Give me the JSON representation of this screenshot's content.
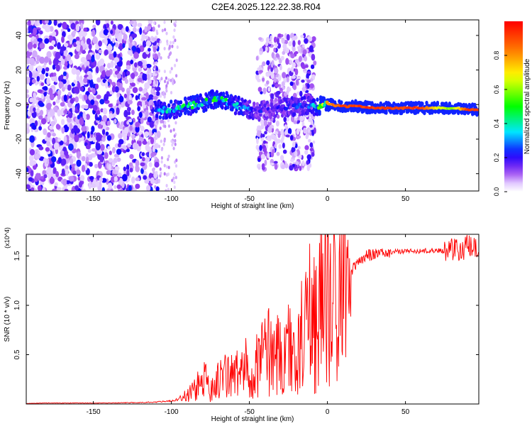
{
  "title": "C2E4.2025.122.22.38.R04",
  "chart_data": [
    {
      "type": "heatmap",
      "title": "C2E4.2025.122.22.38.R04",
      "xlabel": "Height of straight line (km)",
      "ylabel": "Frequency (Hz)",
      "xlim": [
        -193,
        97
      ],
      "ylim": [
        -50,
        49
      ],
      "xticks": [
        -150,
        -100,
        -50,
        0,
        50
      ],
      "yticks": [
        -40,
        -20,
        0,
        20,
        40
      ],
      "colorbar": {
        "label": "Normalized spectral amplitude",
        "range": [
          0,
          1
        ],
        "ticks": [
          0.0,
          0.2,
          0.4,
          0.6,
          0.8
        ],
        "colors": [
          "#ffffff",
          "#d9b3ff",
          "#7f00ff",
          "#0000ff",
          "#00ffff",
          "#00ff00",
          "#ffff00",
          "#ff7f00",
          "#ff0000"
        ]
      },
      "signal_track": [
        {
          "x": -110,
          "freq": -3,
          "amplitude": 0.35
        },
        {
          "x": -100,
          "freq": -3,
          "amplitude": 0.4
        },
        {
          "x": -90,
          "freq": -1,
          "amplitude": 0.45
        },
        {
          "x": -80,
          "freq": 1,
          "amplitude": 0.45
        },
        {
          "x": -70,
          "freq": 4,
          "amplitude": 0.5
        },
        {
          "x": -60,
          "freq": 0,
          "amplitude": 0.4
        },
        {
          "x": -50,
          "freq": -3,
          "amplitude": 0.3
        },
        {
          "x": -40,
          "freq": -3,
          "amplitude": 0.2
        },
        {
          "x": -30,
          "freq": -2,
          "amplitude": 0.25
        },
        {
          "x": -20,
          "freq": -1,
          "amplitude": 0.25
        },
        {
          "x": -10,
          "freq": -1,
          "amplitude": 0.3
        },
        {
          "x": 0,
          "freq": 0,
          "amplitude": 0.8
        },
        {
          "x": 10,
          "freq": -1,
          "amplitude": 0.95
        },
        {
          "x": 20,
          "freq": -1,
          "amplitude": 0.95
        },
        {
          "x": 30,
          "freq": -2,
          "amplitude": 0.95
        },
        {
          "x": 40,
          "freq": -2,
          "amplitude": 0.95
        },
        {
          "x": 50,
          "freq": -2,
          "amplitude": 0.95
        },
        {
          "x": 60,
          "freq": -2,
          "amplitude": 0.95
        },
        {
          "x": 70,
          "freq": -2,
          "amplitude": 0.7
        },
        {
          "x": 80,
          "freq": -2,
          "amplitude": 0.6
        },
        {
          "x": 90,
          "freq": -3,
          "amplitude": 0.95
        }
      ]
    },
    {
      "type": "line",
      "xlabel": "Height of straight line (km)",
      "ylabel": "SNR (10 * v/v)",
      "y_multiplier": "(x10^4)",
      "xlim": [
        -193,
        97
      ],
      "ylim": [
        0,
        1.72
      ],
      "xticks": [
        -150,
        -100,
        -50,
        0,
        50
      ],
      "yticks": [
        0.5,
        1.0,
        1.5
      ],
      "color": "#ff0000",
      "series": [
        {
          "x": [
            -193,
            -180,
            -160,
            -140,
            -120,
            -110,
            -100,
            -95,
            -90,
            -85,
            -80,
            -75,
            -70,
            -65,
            -60,
            -55,
            -50,
            -45,
            -40,
            -35,
            -30,
            -25,
            -20,
            -15,
            -12,
            -10,
            -5,
            0,
            5,
            10,
            15,
            20,
            25,
            30,
            35,
            40,
            50,
            60,
            70,
            75,
            80,
            85,
            90,
            95,
            97
          ],
          "values": [
            0.005,
            0.01,
            0.01,
            0.01,
            0.015,
            0.02,
            0.03,
            0.05,
            0.1,
            0.15,
            0.25,
            0.2,
            0.25,
            0.3,
            0.3,
            0.35,
            0.4,
            0.45,
            0.55,
            0.6,
            0.5,
            0.6,
            0.45,
            0.85,
            1.05,
            0.9,
            1.0,
            1.1,
            1.2,
            1.3,
            1.35,
            1.45,
            1.5,
            1.52,
            1.53,
            1.54,
            1.55,
            1.55,
            1.56,
            1.55,
            1.58,
            1.55,
            1.6,
            1.55,
            1.58
          ]
        }
      ]
    }
  ]
}
